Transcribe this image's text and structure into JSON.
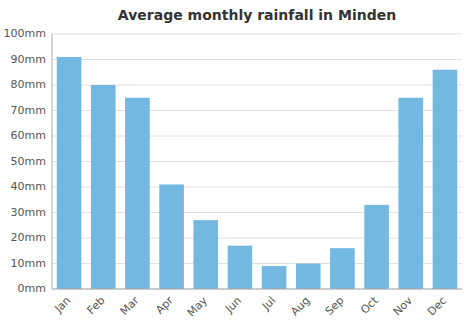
{
  "chart_data": {
    "type": "bar",
    "title": "Average monthly rainfall in Minden",
    "categories": [
      "Jan",
      "Feb",
      "Mar",
      "Apr",
      "May",
      "Jun",
      "Jul",
      "Aug",
      "Sep",
      "Oct",
      "Nov",
      "Dec"
    ],
    "values": [
      91,
      80,
      75,
      41,
      27,
      17,
      9,
      10,
      16,
      33,
      75,
      86
    ],
    "color": "#72b8e0",
    "ylim": [
      0,
      100
    ],
    "yticks": [
      {
        "value": 0,
        "label": "0mm"
      },
      {
        "value": 10,
        "label": "10mm"
      },
      {
        "value": 20,
        "label": "20mm"
      },
      {
        "value": 30,
        "label": "30mm"
      },
      {
        "value": 40,
        "label": "40mm"
      },
      {
        "value": 50,
        "label": "50mm"
      },
      {
        "value": 60,
        "label": "60mm"
      },
      {
        "value": 70,
        "label": "70mm"
      },
      {
        "value": 80,
        "label": "80mm"
      },
      {
        "value": 90,
        "label": "90mm"
      },
      {
        "value": 100,
        "label": "100mm"
      }
    ],
    "grid": true
  }
}
